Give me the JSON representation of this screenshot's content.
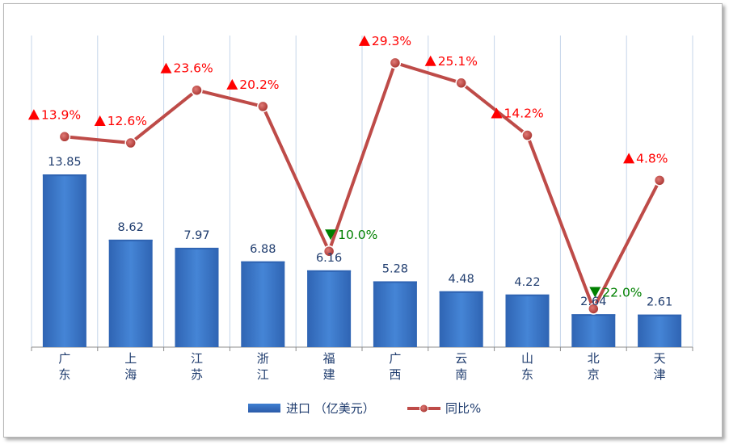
{
  "chart_data": {
    "type": "bar",
    "categories": [
      [
        "广",
        "东"
      ],
      [
        "上",
        "海"
      ],
      [
        "江",
        "苏"
      ],
      [
        "浙",
        "江"
      ],
      [
        "福",
        "建"
      ],
      [
        "广",
        "西"
      ],
      [
        "云",
        "南"
      ],
      [
        "山",
        "东"
      ],
      [
        "北",
        "京"
      ],
      [
        "天",
        "津"
      ]
    ],
    "series": [
      {
        "name": "进口 （亿美元）",
        "type": "bar",
        "axis": "left",
        "values": [
          13.85,
          8.62,
          7.97,
          6.88,
          6.16,
          5.28,
          4.48,
          4.22,
          2.64,
          2.61
        ],
        "labels": [
          "13.85",
          "8.62",
          "7.97",
          "6.88",
          "6.16",
          "5.28",
          "4.48",
          "4.22",
          "2.64",
          "2.61"
        ],
        "color": "#3a73c2"
      },
      {
        "name": "同比%",
        "type": "line",
        "axis": "right",
        "values": [
          13.9,
          12.6,
          23.6,
          20.2,
          -10.0,
          29.3,
          25.1,
          14.2,
          -22.0,
          4.8
        ],
        "labels": [
          "13.9%",
          "12.6%",
          "23.6%",
          "20.2%",
          "10.0%",
          "29.3%",
          "25.1%",
          "14.2%",
          "22.0%",
          "4.8%"
        ],
        "direction": [
          "up",
          "up",
          "up",
          "up",
          "down",
          "up",
          "up",
          "up",
          "down",
          "up"
        ],
        "color": "#be4b48"
      }
    ],
    "up_color": "#ff0000",
    "down_color": "#008000",
    "ylim_left": [
      0,
      25
    ],
    "ylim_right": [
      -30,
      35
    ],
    "grid": "vertical",
    "legend_position": "bottom"
  }
}
